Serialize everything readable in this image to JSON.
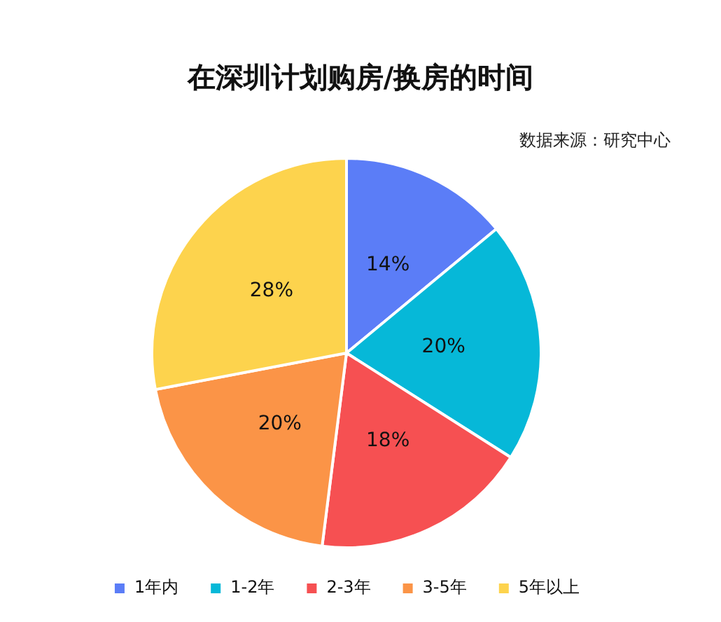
{
  "chart_data": {
    "type": "pie",
    "title": "在深圳计划购房/换房的时间",
    "annotations": [
      "数据来源：研究中心"
    ],
    "categories": [
      "1年内",
      "1-2年",
      "2-3年",
      "3-5年",
      "5年以上"
    ],
    "values": [
      14,
      20,
      18,
      20,
      28
    ],
    "value_labels": [
      "14%",
      "20%",
      "18%",
      "20%",
      "28%"
    ],
    "colors": [
      "#5b7df7",
      "#06b8d8",
      "#f65052",
      "#fb9447",
      "#fdd34d"
    ],
    "legend": "bottom"
  }
}
